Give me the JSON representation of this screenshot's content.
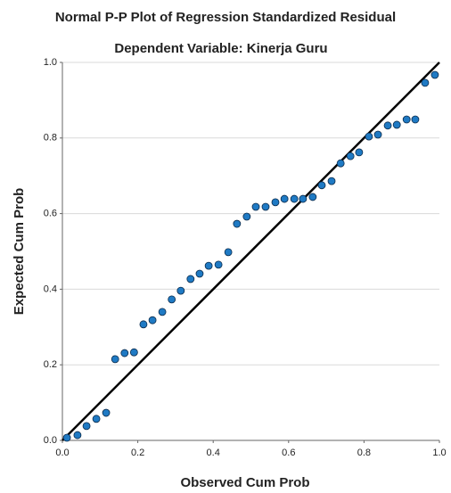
{
  "chart_data": {
    "type": "scatter",
    "title": "Normal P-P Plot of Regression Standardized Residual",
    "subtitle": "Dependent Variable: Kinerja Guru",
    "x_label": "Observed Cum Prob",
    "y_label": "Expected Cum Prob",
    "xlim": [
      0,
      1
    ],
    "ylim": [
      0,
      1
    ],
    "xticks": [
      {
        "value": 0,
        "label": "0.0"
      },
      0.2,
      0.4,
      0.6,
      0.8,
      {
        "value": 1,
        "label": "1.0"
      }
    ],
    "yticks": [
      {
        "value": 0,
        "label": "0.0"
      },
      0.2,
      0.4,
      0.6,
      0.8,
      {
        "value": 1,
        "label": "1.0"
      }
    ],
    "grid": true,
    "color": "#1f7ac4",
    "x": [
      0.012,
      0.04,
      0.064,
      0.09,
      0.116,
      0.14,
      0.165,
      0.19,
      0.215,
      0.239,
      0.265,
      0.29,
      0.314,
      0.34,
      0.364,
      0.388,
      0.414,
      0.44,
      0.463,
      0.489,
      0.513,
      0.539,
      0.565,
      0.589,
      0.615,
      0.638,
      0.664,
      0.688,
      0.714,
      0.738,
      0.764,
      0.787,
      0.813,
      0.837,
      0.863,
      0.887,
      0.913,
      0.936,
      0.962,
      0.988
    ],
    "values": [
      0.007,
      0.014,
      0.038,
      0.057,
      0.073,
      0.215,
      0.231,
      0.233,
      0.307,
      0.318,
      0.34,
      0.373,
      0.396,
      0.427,
      0.441,
      0.462,
      0.465,
      0.498,
      0.573,
      0.592,
      0.618,
      0.618,
      0.63,
      0.639,
      0.639,
      0.639,
      0.644,
      0.675,
      0.686,
      0.733,
      0.752,
      0.762,
      0.804,
      0.809,
      0.833,
      0.835,
      0.849,
      0.849,
      0.946,
      0.967
    ]
  }
}
